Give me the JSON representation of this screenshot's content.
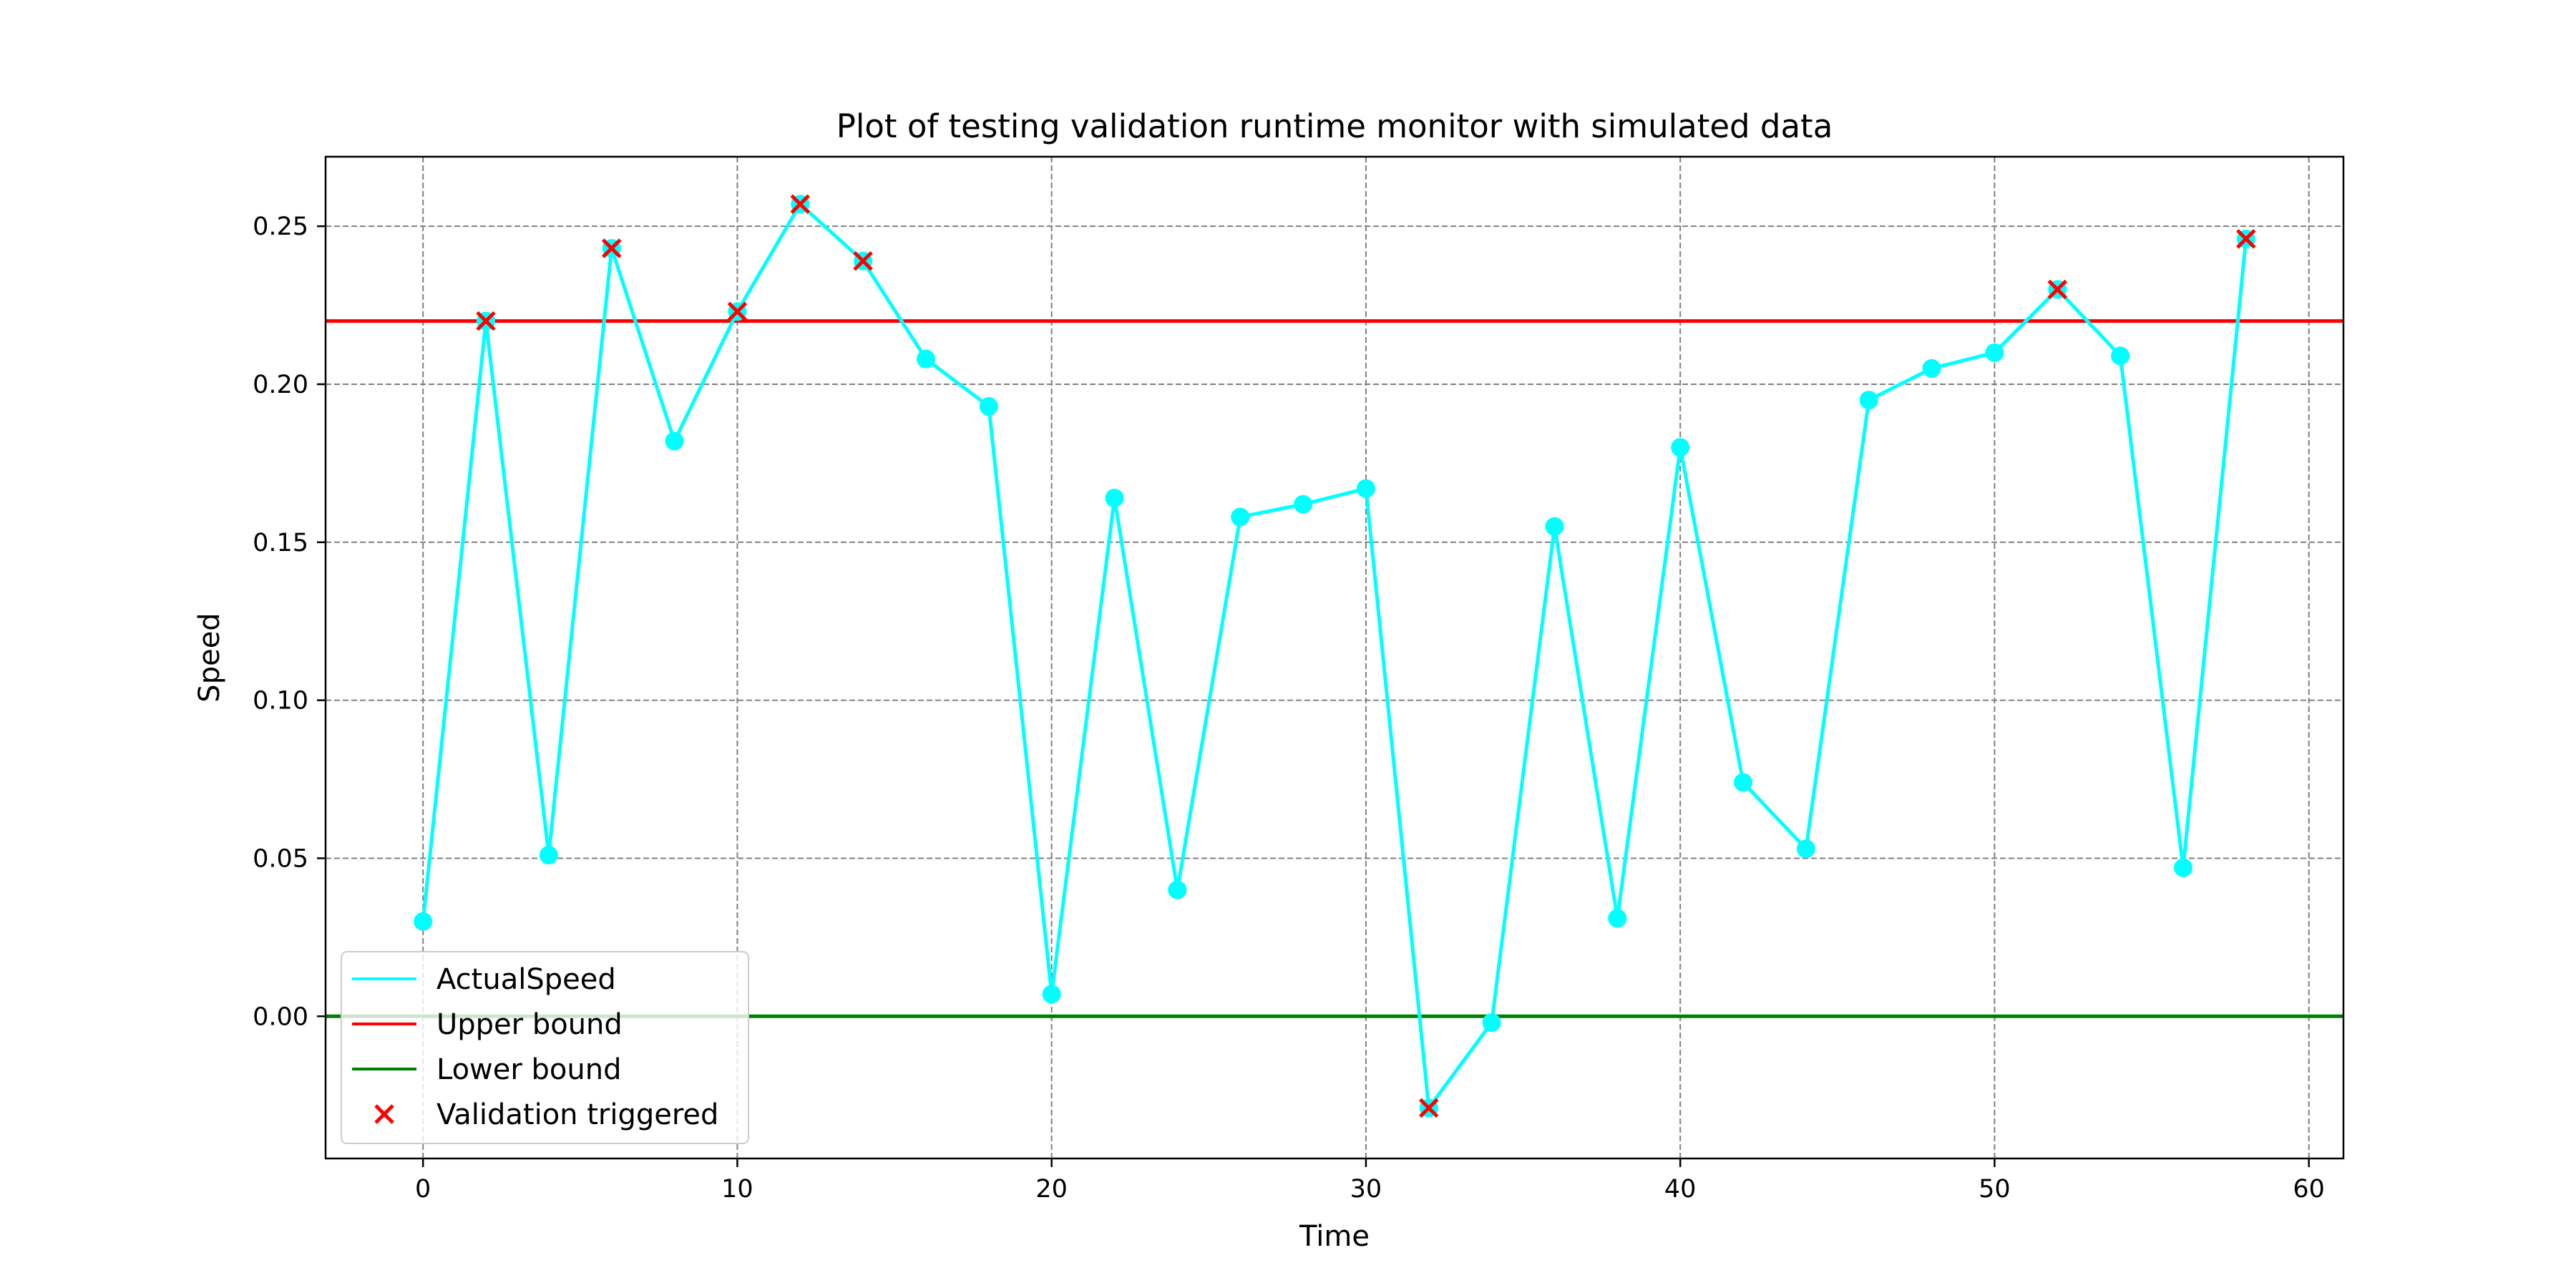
{
  "chart_data": {
    "type": "line",
    "title": "Plot of testing validation runtime monitor with simulated data",
    "xlabel": "Time",
    "ylabel": "Speed",
    "xlim": [
      -3.1,
      61.1
    ],
    "ylim": [
      -0.045,
      0.272
    ],
    "xticks": [
      0,
      10,
      20,
      30,
      40,
      50,
      60
    ],
    "yticks": [
      0.0,
      0.05,
      0.1,
      0.15,
      0.2,
      0.25
    ],
    "xtick_labels": [
      "0",
      "10",
      "20",
      "30",
      "40",
      "50",
      "60"
    ],
    "ytick_labels": [
      "0.00",
      "0.05",
      "0.10",
      "0.15",
      "0.20",
      "0.25"
    ],
    "grid": true,
    "legend_position": "lower-left",
    "series": [
      {
        "name": "ActualSpeed",
        "color": "#00ffff",
        "x": [
          0,
          2,
          4,
          6,
          8,
          10,
          12,
          14,
          16,
          18,
          20,
          22,
          24,
          26,
          28,
          30,
          32,
          34,
          36,
          38,
          40,
          42,
          44,
          46,
          48,
          50,
          52,
          54,
          56,
          58
        ],
        "y": [
          0.03,
          0.22,
          0.051,
          0.243,
          0.182,
          0.223,
          0.257,
          0.239,
          0.208,
          0.193,
          0.007,
          0.164,
          0.04,
          0.158,
          0.162,
          0.167,
          -0.029,
          -0.002,
          0.155,
          0.031,
          0.18,
          0.074,
          0.053,
          0.195,
          0.205,
          0.21,
          0.23,
          0.209,
          0.047,
          0.246
        ]
      }
    ],
    "reference_lines": [
      {
        "name": "Upper bound",
        "y": 0.22,
        "color": "#ff0000"
      },
      {
        "name": "Lower bound",
        "y": 0.0,
        "color": "#008000"
      }
    ],
    "markers": {
      "name": "Validation triggered",
      "color": "#ff0000",
      "x": [
        2,
        6,
        10,
        12,
        14,
        32,
        52,
        58
      ],
      "y": [
        0.22,
        0.243,
        0.223,
        0.257,
        0.239,
        -0.029,
        0.23,
        0.246
      ]
    }
  }
}
